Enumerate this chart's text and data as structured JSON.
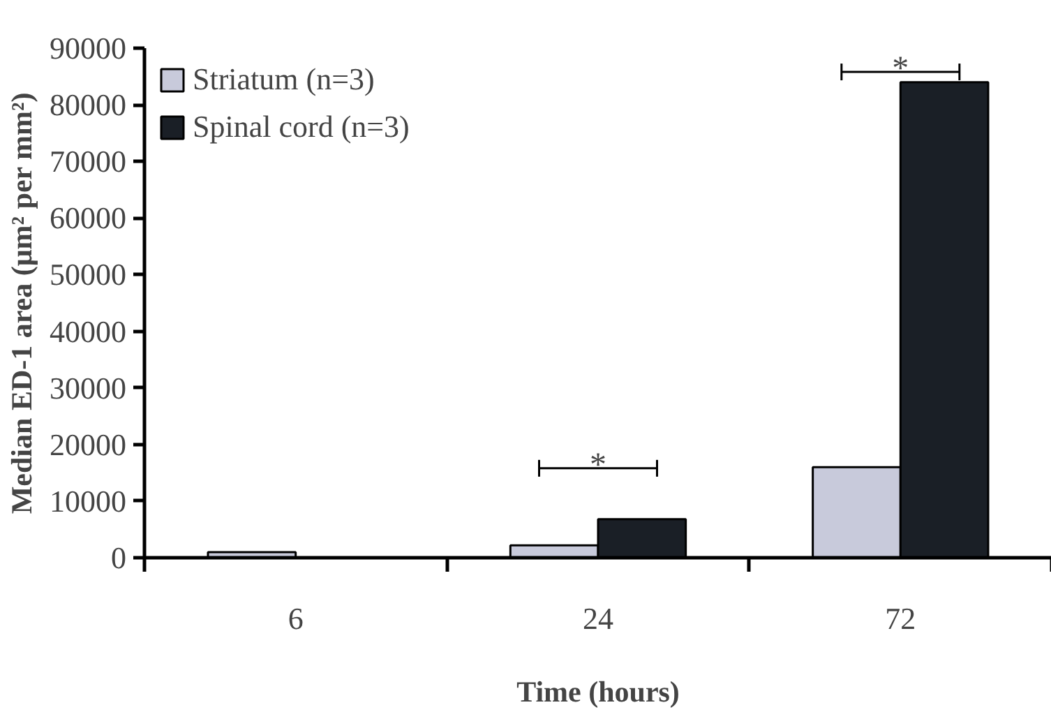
{
  "chart_data": {
    "type": "bar",
    "xlabel": "Time (hours)",
    "ylabel": "Median ED-1 area (μm² per mm²)",
    "categories": [
      "6",
      "24",
      "72"
    ],
    "series": [
      {
        "name": "Striatum (n=3)",
        "color": "#c8cadb",
        "values": [
          1000,
          2200,
          16000
        ]
      },
      {
        "name": "Spinal cord (n=3)",
        "color": "#1a1f26",
        "values": [
          null,
          6800,
          84000
        ]
      }
    ],
    "ylim": [
      0,
      90000
    ],
    "yticks": [
      0,
      10000,
      20000,
      30000,
      40000,
      50000,
      60000,
      70000,
      80000,
      90000
    ],
    "annotations": [
      "*",
      "*"
    ],
    "legend": "top left",
    "grid": false
  }
}
